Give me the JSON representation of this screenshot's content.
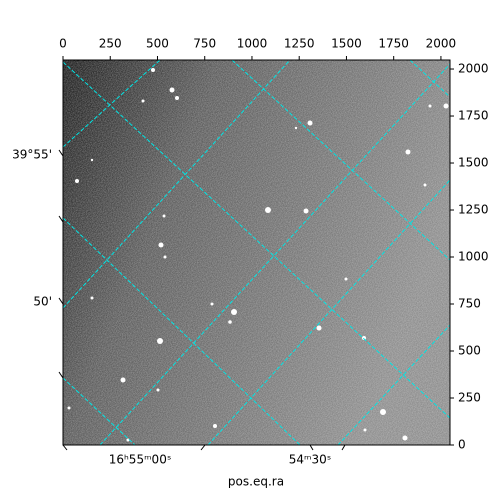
{
  "chart_data": {
    "type": "image",
    "xlabel": "pos.eq.ra",
    "xlim": [
      0,
      2048
    ],
    "xticks": [
      0,
      250,
      500,
      750,
      1000,
      1250,
      1500,
      1750,
      2000
    ],
    "ylim": [
      0,
      2048
    ],
    "yticks": [
      0,
      250,
      500,
      750,
      1000,
      1250,
      1500,
      1750,
      2000
    ],
    "ra_ticks": [
      "16ʰ55ᵐ00ˢ",
      "54ᵐ30ˢ"
    ],
    "dec_ticks": [
      "39°55'",
      "50'"
    ],
    "grid_color": "#00e5e5"
  }
}
